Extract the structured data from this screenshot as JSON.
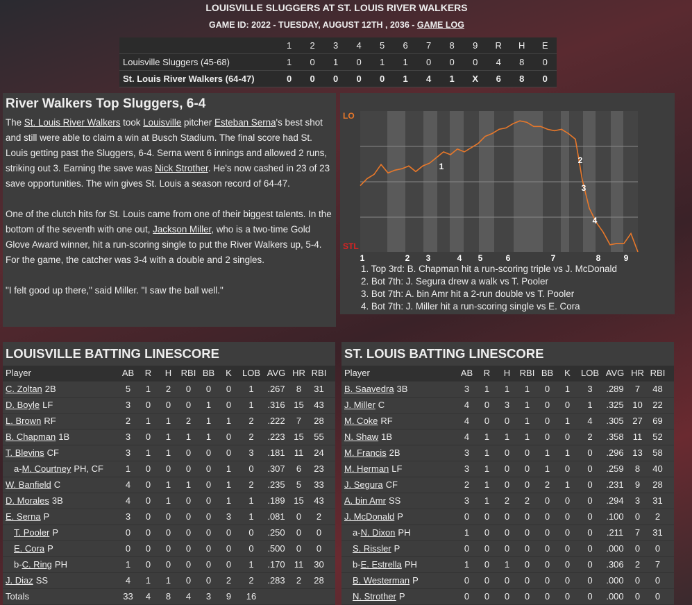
{
  "header": {
    "title": "LOUISVILLE SLUGGERS AT ST. LOUIS RIVER WALKERS",
    "subtitle": "GAME ID: 2022 - TUESDAY, AUGUST 12TH , 2036 - ",
    "subtitle_link": "GAME LOG"
  },
  "linescore": {
    "columns": [
      "1",
      "2",
      "3",
      "4",
      "5",
      "6",
      "7",
      "8",
      "9",
      "R",
      "H",
      "E"
    ],
    "rows": [
      {
        "team": "Louisville Sluggers (45-68)",
        "cells": [
          "1",
          "0",
          "1",
          "0",
          "1",
          "1",
          "0",
          "0",
          "0",
          "4",
          "8",
          "0"
        ]
      },
      {
        "team": "St. Louis River Walkers (64-47)",
        "cells": [
          "0",
          "0",
          "0",
          "0",
          "0",
          "1",
          "4",
          "1",
          "X",
          "6",
          "8",
          "0"
        ]
      }
    ]
  },
  "article": {
    "headline": "River Walkers Top Sluggers, 6-4",
    "paragraphs": [
      [
        {
          "text": "The "
        },
        {
          "link": "St. Louis River Walkers"
        },
        {
          "text": " took "
        },
        {
          "link": "Louisville"
        },
        {
          "text": " pitcher "
        },
        {
          "link": "Esteban Serna"
        },
        {
          "text": "'s best shot and still were able to claim a win at Busch Stadium. The final score had St. Louis getting past the Sluggers, 6-4. Serna went 6 innings and allowed 2 runs, striking out 3. Earning the save was "
        },
        {
          "link": "Nick Strother"
        },
        {
          "text": ". He's now cashed in 23 of 23 save opportunities. The win gives St. Louis a season record of 64-47."
        }
      ],
      [
        {
          "text": "One of the clutch hits for St. Louis came from one of their biggest talents. In the bottom of the seventh with one out, "
        },
        {
          "link": "Jackson Miller"
        },
        {
          "text": ", who is a two-time Gold Glove Award winner, hit a run-scoring single to put the River Walkers up, 5-4. For the game, the catcher was 3-4 with a double and 2 singles."
        }
      ],
      [
        {
          "text": "\"I felt good up there,\" said Miller. \"I saw the ball well.\""
        }
      ]
    ]
  },
  "win_chart": {
    "top_label": "LO",
    "bottom_label": "STL",
    "ylim": [
      0,
      100
    ],
    "innings": [
      "1",
      "2",
      "3",
      "4",
      "5",
      "6",
      "7",
      "8",
      "9"
    ],
    "markers": [
      "1",
      "2",
      "3",
      "4"
    ],
    "points": [
      47,
      52,
      55,
      62,
      56,
      58,
      59,
      61,
      57,
      61,
      63,
      67,
      71,
      69,
      73,
      71,
      74,
      77,
      82,
      84,
      87,
      88,
      91,
      93,
      92,
      89,
      89,
      87,
      86,
      87,
      84,
      80,
      51,
      31,
      21,
      14,
      5,
      6,
      6,
      13,
      0
    ],
    "legend": [
      "1. Top 3rd: B. Chapman hit a run-scoring triple vs J. McDonald",
      "2. Bot 7th: J. Segura drew a walk vs T. Pooler",
      "3. Bot 7th: A. bin Amr hit a 2-run double vs T. Pooler",
      "4. Bot 7th: J. Miller hit a run-scoring single vs E. Cora"
    ]
  },
  "batting": [
    {
      "title": "LOUISVILLE BATTING LINESCORE",
      "columns": [
        "Player",
        "AB",
        "R",
        "H",
        "RBI",
        "BB",
        "K",
        "LOB",
        "AVG",
        "HR",
        "RBI"
      ],
      "rows": [
        {
          "name": "C. Zoltan",
          "pos": "2B",
          "stats": [
            "5",
            "1",
            "2",
            "0",
            "0",
            "0",
            "1",
            ".267",
            "8",
            "31"
          ]
        },
        {
          "name": "D. Boyle",
          "pos": "LF",
          "stats": [
            "3",
            "0",
            "0",
            "0",
            "1",
            "0",
            "1",
            ".316",
            "15",
            "43"
          ]
        },
        {
          "name": "L. Brown",
          "pos": "RF",
          "stats": [
            "2",
            "1",
            "1",
            "2",
            "1",
            "1",
            "2",
            ".222",
            "7",
            "28"
          ]
        },
        {
          "name": "B. Chapman",
          "pos": "1B",
          "stats": [
            "3",
            "0",
            "1",
            "1",
            "1",
            "0",
            "2",
            ".223",
            "15",
            "55"
          ]
        },
        {
          "name": "T. Blevins",
          "pos": "CF",
          "stats": [
            "3",
            "1",
            "1",
            "0",
            "0",
            "0",
            "3",
            ".181",
            "11",
            "24"
          ]
        },
        {
          "prefix": "a-",
          "name": "M. Courtney",
          "pos": "PH, CF",
          "sub": true,
          "stats": [
            "1",
            "0",
            "0",
            "0",
            "0",
            "1",
            "0",
            ".307",
            "6",
            "23"
          ]
        },
        {
          "name": "W. Banfield",
          "pos": "C",
          "stats": [
            "4",
            "0",
            "1",
            "1",
            "0",
            "1",
            "2",
            ".235",
            "5",
            "33"
          ]
        },
        {
          "name": "D. Morales",
          "pos": "3B",
          "stats": [
            "4",
            "0",
            "1",
            "0",
            "0",
            "1",
            "1",
            ".189",
            "15",
            "43"
          ]
        },
        {
          "name": "E. Serna",
          "pos": "P",
          "stats": [
            "3",
            "0",
            "0",
            "0",
            "0",
            "3",
            "1",
            ".081",
            "0",
            "2"
          ]
        },
        {
          "name": "T. Pooler",
          "pos": "P",
          "sub": true,
          "stats": [
            "0",
            "0",
            "0",
            "0",
            "0",
            "0",
            "0",
            ".250",
            "0",
            "0"
          ]
        },
        {
          "name": "E. Cora",
          "pos": "P",
          "sub": true,
          "stats": [
            "0",
            "0",
            "0",
            "0",
            "0",
            "0",
            "0",
            ".500",
            "0",
            "0"
          ]
        },
        {
          "prefix": "b-",
          "name": "C. Ring",
          "pos": "PH",
          "sub": true,
          "stats": [
            "1",
            "0",
            "0",
            "0",
            "0",
            "0",
            "1",
            ".170",
            "11",
            "30"
          ]
        },
        {
          "name": "J. Diaz",
          "pos": "SS",
          "stats": [
            "4",
            "1",
            "1",
            "0",
            "0",
            "2",
            "2",
            ".283",
            "2",
            "28"
          ]
        }
      ],
      "totals": {
        "label": "Totals",
        "stats": [
          "33",
          "4",
          "8",
          "4",
          "3",
          "9",
          "16"
        ]
      }
    },
    {
      "title": "ST. LOUIS BATTING LINESCORE",
      "columns": [
        "Player",
        "AB",
        "R",
        "H",
        "RBI",
        "BB",
        "K",
        "LOB",
        "AVG",
        "HR",
        "RBI"
      ],
      "rows": [
        {
          "name": "B. Saavedra",
          "pos": "3B",
          "stats": [
            "3",
            "1",
            "1",
            "1",
            "0",
            "1",
            "3",
            ".289",
            "7",
            "48"
          ]
        },
        {
          "name": "J. Miller",
          "pos": "C",
          "stats": [
            "4",
            "0",
            "3",
            "1",
            "0",
            "0",
            "1",
            ".325",
            "10",
            "22"
          ]
        },
        {
          "name": "M. Coke",
          "pos": "RF",
          "stats": [
            "4",
            "0",
            "0",
            "1",
            "0",
            "1",
            "4",
            ".305",
            "27",
            "69"
          ]
        },
        {
          "name": "N. Shaw",
          "pos": "1B",
          "stats": [
            "4",
            "1",
            "1",
            "1",
            "0",
            "0",
            "2",
            ".358",
            "11",
            "52"
          ]
        },
        {
          "name": "M. Francis",
          "pos": "2B",
          "stats": [
            "3",
            "1",
            "0",
            "0",
            "1",
            "1",
            "0",
            ".296",
            "13",
            "58"
          ]
        },
        {
          "name": "M. Herman",
          "pos": "LF",
          "stats": [
            "3",
            "1",
            "0",
            "0",
            "1",
            "0",
            "0",
            ".259",
            "8",
            "40"
          ]
        },
        {
          "name": "J. Segura",
          "pos": "CF",
          "stats": [
            "2",
            "1",
            "0",
            "0",
            "2",
            "1",
            "0",
            ".231",
            "9",
            "28"
          ]
        },
        {
          "name": "A. bin Amr",
          "pos": "SS",
          "stats": [
            "3",
            "1",
            "2",
            "2",
            "0",
            "0",
            "0",
            ".294",
            "3",
            "31"
          ]
        },
        {
          "name": "J. McDonald",
          "pos": "P",
          "stats": [
            "0",
            "0",
            "0",
            "0",
            "0",
            "0",
            "0",
            ".100",
            "0",
            "2"
          ]
        },
        {
          "prefix": "a-",
          "name": "N. Dixon",
          "pos": "PH",
          "sub": true,
          "stats": [
            "1",
            "0",
            "0",
            "0",
            "0",
            "0",
            "0",
            ".211",
            "7",
            "31"
          ]
        },
        {
          "name": "S. Rissler",
          "pos": "P",
          "sub": true,
          "stats": [
            "0",
            "0",
            "0",
            "0",
            "0",
            "0",
            "0",
            ".000",
            "0",
            "0"
          ]
        },
        {
          "prefix": "b-",
          "name": "E. Estrella",
          "pos": "PH",
          "sub": true,
          "stats": [
            "1",
            "0",
            "1",
            "0",
            "0",
            "0",
            "0",
            ".306",
            "2",
            "7"
          ]
        },
        {
          "name": "B. Westerman",
          "pos": "P",
          "sub": true,
          "stats": [
            "0",
            "0",
            "0",
            "0",
            "0",
            "0",
            "0",
            ".000",
            "0",
            "0"
          ]
        },
        {
          "name": "N. Strother",
          "pos": "P",
          "sub": true,
          "stats": [
            "0",
            "0",
            "0",
            "0",
            "0",
            "0",
            "0",
            ".000",
            "0",
            "0"
          ]
        }
      ]
    }
  ]
}
